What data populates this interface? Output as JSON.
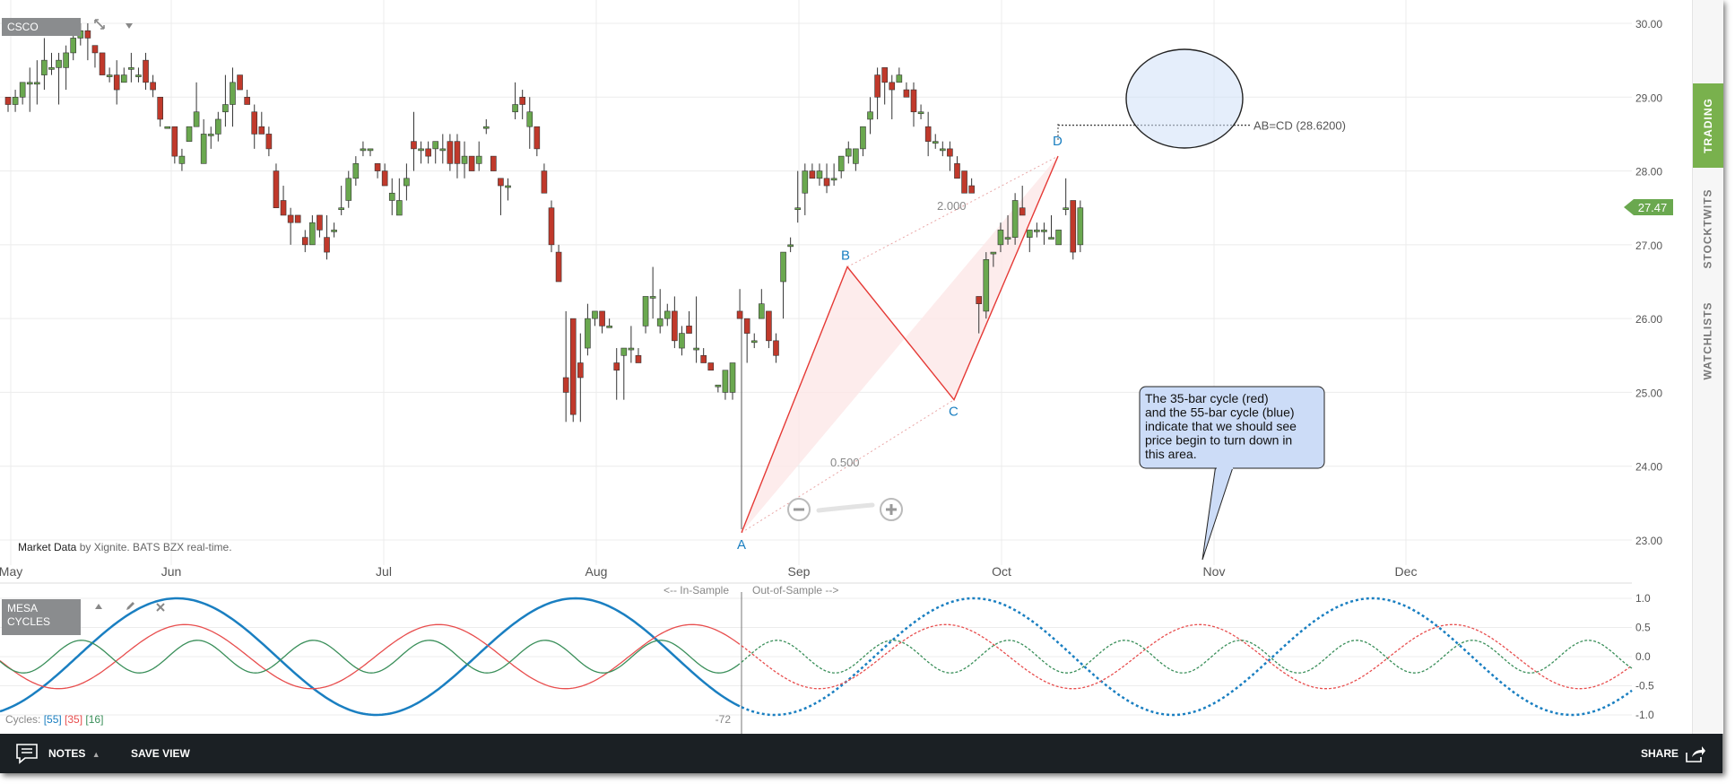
{
  "symbol": "CSCO",
  "indicator_label": [
    "MESA",
    "CYCLES"
  ],
  "market_data": {
    "bold": "Market Data",
    "rest": " by Xignite. BATS BZX real-time."
  },
  "price_tag": "27.47",
  "sidebar": {
    "tabs": [
      "TRADING",
      "STOCKTWITS",
      "WATCHLISTS"
    ]
  },
  "footer": {
    "notes": "NOTES",
    "save_view": "SAVE VIEW",
    "share": "SHARE"
  },
  "callout": {
    "lines": [
      "The 35-bar cycle (red)",
      "and the 55-bar cycle (blue)",
      "indicate that we should see",
      "price begin to turn down in",
      "this area."
    ]
  },
  "colors": {
    "up": "#6aa84f",
    "down": "#c0392b",
    "pattern": "#e53935",
    "cycle55": "#1a7fc1",
    "cycle35": "#e84e4e",
    "cycle16": "#3a8f5a",
    "trading_tab": "#79b14d",
    "callout_fill": "#ccdcf7",
    "footer": "#1b2024"
  },
  "icons": {
    "expand": "expand-icon",
    "download": "download-arrow-icon",
    "move_up": "arrow-up-icon",
    "edit": "pencil-icon",
    "remove": "close-icon",
    "notes": "chat-bubble-icon",
    "share": "share-arrow-icon",
    "zoom_out": "minus-circle-icon",
    "zoom_in": "plus-circle-icon"
  },
  "chart_data": [
    {
      "type": "candlestick",
      "symbol": "CSCO",
      "x_labels": [
        "May",
        "Jun",
        "Jul",
        "Aug",
        "Sep",
        "Oct",
        "Nov",
        "Dec"
      ],
      "y_ticks": [
        "30.00",
        "29.00",
        "28.00",
        "27.00",
        "26.00",
        "25.00",
        "24.00",
        "23.00"
      ],
      "ylim": [
        22.8,
        30.3
      ],
      "grid": true,
      "last_price": 27.47,
      "candles": [
        [
          29.0,
          28.8,
          28.9,
          28.9
        ],
        [
          28.9,
          28.8,
          29.1,
          29.0
        ],
        [
          29.0,
          28.9,
          29.2,
          29.2
        ],
        [
          29.2,
          28.8,
          29.4,
          29.2
        ],
        [
          29.2,
          28.9,
          29.5,
          29.2
        ],
        [
          29.3,
          29.1,
          29.8,
          29.5
        ],
        [
          29.4,
          29.3,
          29.6,
          29.4
        ],
        [
          29.4,
          28.9,
          29.6,
          29.5
        ],
        [
          29.4,
          29.1,
          29.7,
          29.6
        ],
        [
          29.6,
          29.5,
          29.9,
          29.8
        ],
        [
          29.8,
          29.7,
          30.0,
          29.9
        ],
        [
          29.9,
          29.5,
          30.0,
          29.8
        ],
        [
          29.7,
          29.4,
          29.7,
          29.6
        ],
        [
          29.6,
          29.3,
          29.6,
          29.3
        ],
        [
          29.3,
          29.2,
          29.4,
          29.3
        ],
        [
          29.3,
          28.9,
          29.5,
          29.1
        ],
        [
          29.2,
          29.2,
          29.4,
          29.3
        ],
        [
          29.4,
          29.2,
          29.6,
          29.4
        ],
        [
          29.3,
          29.2,
          29.4,
          29.3
        ],
        [
          29.5,
          29.1,
          29.6,
          29.2
        ],
        [
          29.2,
          29.0,
          29.3,
          29.1
        ],
        [
          29.0,
          28.6,
          29.0,
          28.7
        ],
        [
          28.6,
          28.6,
          28.6,
          28.6
        ],
        [
          28.6,
          28.1,
          28.6,
          28.2
        ],
        [
          28.1,
          28.0,
          28.3,
          28.2
        ],
        [
          28.4,
          28.4,
          28.6,
          28.6
        ],
        [
          28.6,
          28.6,
          29.2,
          28.8
        ],
        [
          28.1,
          28.1,
          28.7,
          28.5
        ],
        [
          28.5,
          28.3,
          28.6,
          28.5
        ],
        [
          28.5,
          28.4,
          28.8,
          28.7
        ],
        [
          28.8,
          28.6,
          29.3,
          28.9
        ],
        [
          28.9,
          28.6,
          29.4,
          29.2
        ],
        [
          29.3,
          29.1,
          29.3,
          29.1
        ],
        [
          29.0,
          28.9,
          29.1,
          28.9
        ],
        [
          28.8,
          28.3,
          28.9,
          28.5
        ],
        [
          28.6,
          28.5,
          28.8,
          28.5
        ],
        [
          28.5,
          28.2,
          28.6,
          28.3
        ],
        [
          28.0,
          27.5,
          28.1,
          27.5
        ],
        [
          27.6,
          27.5,
          27.8,
          27.4
        ],
        [
          27.4,
          27.0,
          27.5,
          27.3
        ],
        [
          27.4,
          27.3,
          27.4,
          27.3
        ],
        [
          27.1,
          26.9,
          27.2,
          27.0
        ],
        [
          27.0,
          27.0,
          27.4,
          27.3
        ],
        [
          27.4,
          27.1,
          27.4,
          27.2
        ],
        [
          27.1,
          26.8,
          27.4,
          26.9
        ],
        [
          27.2,
          27.1,
          27.3,
          27.2
        ],
        [
          27.5,
          27.4,
          27.8,
          27.5
        ],
        [
          27.6,
          27.5,
          28.0,
          27.9
        ],
        [
          27.9,
          27.8,
          28.2,
          28.1
        ],
        [
          28.3,
          28.2,
          28.4,
          28.3
        ],
        [
          28.3,
          28.2,
          28.3,
          28.3
        ],
        [
          28.1,
          27.9,
          28.1,
          28.0
        ],
        [
          28.0,
          27.9,
          28.1,
          27.8
        ],
        [
          27.6,
          27.4,
          27.9,
          27.7
        ],
        [
          27.4,
          27.5,
          27.9,
          27.6
        ],
        [
          27.8,
          27.6,
          28.1,
          27.9
        ],
        [
          28.4,
          28.0,
          28.8,
          28.3
        ],
        [
          28.3,
          28.1,
          28.4,
          28.3
        ],
        [
          28.3,
          28.1,
          28.4,
          28.2
        ],
        [
          28.3,
          28.1,
          28.4,
          28.4
        ],
        [
          28.3,
          28.1,
          28.5,
          28.3
        ],
        [
          28.4,
          28.0,
          28.5,
          28.1
        ],
        [
          28.4,
          27.9,
          28.5,
          28.1
        ],
        [
          28.1,
          27.9,
          28.4,
          28.2
        ],
        [
          28.2,
          28.0,
          28.2,
          28.0
        ],
        [
          28.1,
          28.0,
          28.4,
          28.2
        ],
        [
          28.6,
          28.5,
          28.7,
          28.6
        ],
        [
          28.2,
          28.0,
          28.2,
          28.0
        ],
        [
          27.9,
          27.4,
          27.9,
          27.8
        ],
        [
          27.8,
          27.6,
          27.9,
          27.8
        ],
        [
          28.8,
          28.7,
          29.2,
          28.9
        ],
        [
          29.0,
          28.7,
          29.1,
          28.9
        ],
        [
          28.6,
          28.3,
          29.0,
          28.8
        ],
        [
          28.6,
          28.2,
          28.6,
          28.3
        ],
        [
          28.0,
          27.7,
          28.1,
          27.7
        ],
        [
          27.5,
          26.9,
          27.6,
          27.0
        ],
        [
          26.9,
          26.5,
          27.0,
          26.5
        ],
        [
          25.2,
          24.6,
          26.1,
          25.0
        ],
        [
          26.0,
          24.6,
          26.0,
          24.7
        ],
        [
          25.4,
          24.6,
          25.8,
          25.2
        ],
        [
          25.6,
          25.5,
          26.2,
          26.0
        ],
        [
          26.0,
          25.9,
          26.1,
          26.1
        ],
        [
          26.1,
          25.8,
          26.1,
          25.9
        ],
        [
          25.9,
          25.9,
          26.0,
          25.9
        ],
        [
          25.4,
          24.9,
          25.6,
          25.3
        ],
        [
          25.5,
          24.9,
          25.6,
          25.6
        ],
        [
          25.6,
          25.4,
          25.9,
          25.6
        ],
        [
          25.5,
          25.4,
          25.6,
          25.4
        ],
        [
          25.9,
          25.8,
          26.3,
          26.3
        ],
        [
          26.3,
          26.0,
          26.7,
          26.3
        ],
        [
          25.9,
          25.8,
          26.4,
          26.0
        ],
        [
          26.0,
          25.9,
          26.2,
          26.1
        ],
        [
          26.1,
          25.6,
          26.3,
          25.7
        ],
        [
          25.6,
          25.5,
          25.9,
          25.8
        ],
        [
          25.9,
          25.8,
          26.1,
          25.8
        ],
        [
          25.6,
          25.4,
          26.3,
          25.6
        ],
        [
          25.5,
          25.5,
          25.6,
          25.4
        ],
        [
          25.4,
          25.4,
          25.4,
          25.3
        ],
        [
          25.1,
          25.0,
          25.1,
          25.1
        ],
        [
          25.0,
          24.9,
          25.3,
          25.3
        ],
        [
          25.0,
          24.9,
          25.4,
          25.4
        ],
        [
          26.1,
          26.0,
          26.4,
          26.0
        ],
        [
          26.0,
          25.4,
          26.0,
          25.8
        ],
        [
          25.7,
          25.6,
          25.8,
          25.7
        ],
        [
          26.0,
          26.0,
          26.4,
          26.2
        ],
        [
          26.1,
          25.6,
          26.1,
          25.7
        ],
        [
          25.7,
          25.4,
          25.8,
          25.5
        ],
        [
          26.5,
          26.0,
          26.5,
          26.9
        ],
        [
          27.0,
          26.9,
          27.1,
          27.0
        ],
        [
          27.5,
          27.3,
          28.0,
          27.5
        ],
        [
          27.7,
          27.4,
          28.1,
          28.0
        ],
        [
          28.0,
          27.9,
          28.1,
          27.9
        ],
        [
          27.9,
          27.8,
          28.1,
          28.0
        ],
        [
          27.9,
          27.7,
          28.1,
          27.8
        ],
        [
          27.9,
          27.8,
          28.1,
          27.9
        ],
        [
          28.0,
          27.9,
          28.2,
          28.2
        ],
        [
          28.2,
          28.1,
          28.4,
          28.3
        ],
        [
          28.1,
          28.0,
          28.3,
          28.3
        ],
        [
          28.3,
          28.2,
          28.5,
          28.6
        ],
        [
          28.7,
          28.5,
          29.0,
          28.8
        ],
        [
          29.3,
          28.7,
          29.4,
          29.0
        ],
        [
          29.4,
          28.9,
          29.4,
          29.2
        ],
        [
          29.2,
          28.7,
          29.3,
          29.1
        ],
        [
          29.2,
          29.2,
          29.4,
          29.3
        ],
        [
          29.1,
          29.0,
          29.2,
          29.0
        ],
        [
          29.1,
          28.6,
          29.2,
          28.8
        ],
        [
          28.8,
          28.7,
          28.9,
          28.8
        ],
        [
          28.6,
          28.2,
          28.8,
          28.4
        ],
        [
          28.4,
          28.3,
          28.5,
          28.4
        ],
        [
          28.3,
          28.2,
          28.4,
          28.3
        ],
        [
          28.3,
          28.0,
          28.4,
          28.2
        ],
        [
          28.1,
          27.9,
          28.2,
          27.9
        ],
        [
          28.0,
          27.7,
          28.0,
          27.7
        ],
        [
          27.8,
          27.7,
          27.9,
          27.7
        ],
        [
          26.3,
          25.8,
          26.3,
          26.2
        ],
        [
          26.1,
          26.0,
          26.9,
          26.8
        ],
        [
          26.9,
          26.7,
          26.9,
          26.9
        ],
        [
          27.0,
          26.9,
          27.3,
          27.2
        ],
        [
          27.1,
          27.0,
          27.4,
          27.1
        ],
        [
          27.1,
          27.0,
          27.7,
          27.6
        ],
        [
          27.5,
          27.4,
          27.8,
          27.4
        ],
        [
          27.1,
          26.9,
          27.2,
          27.2
        ],
        [
          27.2,
          27.1,
          27.3,
          27.2
        ],
        [
          27.2,
          27.0,
          27.3,
          27.2
        ],
        [
          27.1,
          27.1,
          27.4,
          27.1
        ],
        [
          27.0,
          27.0,
          27.2,
          27.2
        ],
        [
          27.5,
          27.4,
          27.9,
          27.5
        ],
        [
          27.6,
          26.8,
          27.6,
          26.9
        ],
        [
          27.0,
          26.9,
          27.6,
          27.5
        ]
      ],
      "pattern": {
        "label": "AB=CD",
        "points": [
          {
            "label": "A",
            "x": "late Aug",
            "y": 23.1
          },
          {
            "label": "B",
            "x": "early Sep",
            "y": 26.7
          },
          {
            "label": "C",
            "x": "late Sep",
            "y": 24.9
          },
          {
            "label": "D",
            "x": "early Oct",
            "y": 28.2
          }
        ],
        "ratios": [
          "2.000",
          "0.500"
        ],
        "target_label": "AB=CD (28.6200)",
        "target": 28.62
      }
    },
    {
      "type": "line",
      "title": "MESA CYCLES",
      "y_ticks": [
        "1.0",
        "0.5",
        "0.0",
        "-0.5",
        "-1.0"
      ],
      "ylim": [
        -1.0,
        1.0
      ],
      "in_sample_label": "<-- In-Sample",
      "out_sample_label": "Out-of-Sample -->",
      "offset_label": "-72",
      "cycles_prefix": "Cycles:",
      "series": [
        {
          "name": "[55]",
          "period_bars": 55,
          "amplitude": 1.0,
          "phase_deg": -120
        },
        {
          "name": "[35]",
          "period_bars": 35,
          "amplitude": 0.55,
          "phase_deg": 160
        },
        {
          "name": "[16]",
          "period_bars": 16,
          "amplitude": 0.28,
          "phase_deg": 340
        }
      ]
    }
  ]
}
